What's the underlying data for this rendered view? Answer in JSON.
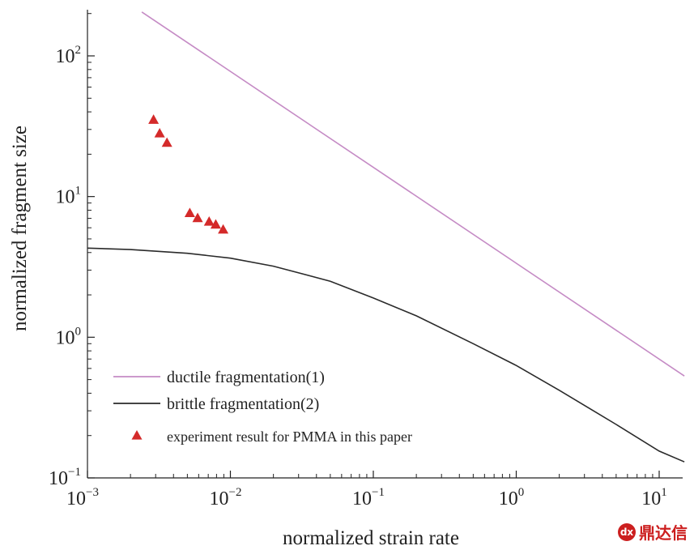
{
  "chart_data": {
    "type": "line",
    "x_scale": "log",
    "y_scale": "log",
    "xlabel": "normalized strain rate",
    "ylabel": "normalized fragment size",
    "xlim": [
      0.001,
      15
    ],
    "ylim": [
      0.1,
      220
    ],
    "x_ticks": [
      {
        "value": 0.001,
        "base": "10",
        "exp": "−3"
      },
      {
        "value": 0.01,
        "base": "10",
        "exp": "−2"
      },
      {
        "value": 0.1,
        "base": "10",
        "exp": "−1"
      },
      {
        "value": 1,
        "base": "10",
        "exp": "0"
      },
      {
        "value": 10,
        "base": "10",
        "exp": "1"
      }
    ],
    "y_ticks": [
      {
        "value": 0.1,
        "base": "10",
        "exp": "−1"
      },
      {
        "value": 1,
        "base": "10",
        "exp": "0"
      },
      {
        "value": 10,
        "base": "10",
        "exp": "1"
      },
      {
        "value": 100,
        "base": "10",
        "exp": "2"
      }
    ],
    "series": [
      {
        "name": "ductile fragmentation(1)",
        "kind": "line",
        "color": "#c58bc5",
        "x": [
          0.0024,
          15
        ],
        "y": [
          205,
          0.53
        ]
      },
      {
        "name": "brittle fragmentation(2)",
        "kind": "line",
        "color": "#2a2a2a",
        "x": [
          0.001,
          0.002,
          0.005,
          0.01,
          0.02,
          0.05,
          0.1,
          0.2,
          0.5,
          1,
          2,
          5,
          10,
          15
        ],
        "y": [
          4.3,
          4.2,
          3.95,
          3.65,
          3.2,
          2.5,
          1.9,
          1.42,
          0.9,
          0.63,
          0.42,
          0.24,
          0.155,
          0.13
        ]
      },
      {
        "name": "experiment result for PMMA in this paper",
        "kind": "scatter",
        "color": "#d42a2a",
        "x": [
          0.0029,
          0.0032,
          0.0036,
          0.0052,
          0.0059,
          0.0071,
          0.0079,
          0.0089
        ],
        "y": [
          35,
          28,
          24,
          7.6,
          7.0,
          6.6,
          6.3,
          5.8
        ]
      }
    ],
    "legend": {
      "position": "bottom-left"
    }
  },
  "watermark": {
    "logo": "dx",
    "text": "鼎达信"
  }
}
